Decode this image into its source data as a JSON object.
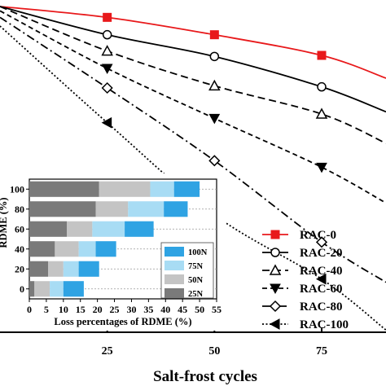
{
  "chart_data": [
    {
      "type": "line",
      "xlabel": "Salt-frost cycles",
      "ylabel": "",
      "xlim": [
        0,
        90
      ],
      "ylim": [
        70,
        100
      ],
      "x_ticks": [
        25,
        50,
        75
      ],
      "x_tick_labels": [
        "25",
        "50",
        "75"
      ],
      "legend_position": "bottom-right",
      "series": [
        {
          "name": "RAC-0",
          "color": "#e8191b",
          "marker": "square-filled",
          "dash": "solid",
          "x": [
            0,
            25,
            50,
            75,
            90
          ],
          "y": [
            100.0,
            99.0,
            97.4,
            95.5,
            93.4
          ]
        },
        {
          "name": "RAC-20",
          "color": "#000000",
          "marker": "circle-open",
          "dash": "solid",
          "x": [
            0,
            25,
            50,
            75,
            90
          ],
          "y": [
            100.0,
            97.4,
            95.4,
            92.6,
            90.3
          ]
        },
        {
          "name": "RAC-40",
          "color": "#000000",
          "marker": "triangle-open",
          "dash": "dashed",
          "x": [
            0,
            25,
            50,
            75,
            90
          ],
          "y": [
            100.0,
            95.9,
            92.7,
            90.1,
            87.4
          ]
        },
        {
          "name": "RAC-60",
          "color": "#000000",
          "marker": "triangle-down-filled",
          "dash": "short-dash",
          "x": [
            0,
            25,
            50,
            75,
            90
          ],
          "y": [
            99.6,
            94.3,
            89.7,
            85.2,
            81.9
          ]
        },
        {
          "name": "RAC-80",
          "color": "#000000",
          "marker": "diamond-open",
          "dash": "dash-dot",
          "x": [
            0,
            25,
            50,
            75,
            90
          ],
          "y": [
            99.0,
            92.5,
            85.8,
            78.3,
            74.6
          ]
        },
        {
          "name": "RAC-100",
          "color": "#000000",
          "marker": "triangle-left-filled",
          "dash": "dotted",
          "x": [
            0,
            25,
            50,
            75,
            90
          ],
          "y": [
            98.2,
            89.3,
            80.8,
            74.9,
            70.2
          ]
        }
      ]
    },
    {
      "type": "bar",
      "orientation": "horizontal",
      "stacked": true,
      "xlabel": "Loss percentages of RDME (%)",
      "ylabel": "",
      "xlim": [
        0,
        55
      ],
      "x_ticks": [
        0,
        5,
        10,
        15,
        20,
        25,
        30,
        35,
        40,
        45,
        50,
        55
      ],
      "categories": [
        "0",
        "20",
        "40",
        "60",
        "80",
        "100"
      ],
      "legend_position": "bottom-right",
      "series": [
        {
          "name": "25N",
          "color": "#7a7a7a",
          "values": [
            1.5,
            5.5,
            7.5,
            11,
            19.5,
            20.5
          ]
        },
        {
          "name": "50N",
          "color": "#c4c4c4",
          "values": [
            4.5,
            4.5,
            7.0,
            7.5,
            9.5,
            15.0
          ]
        },
        {
          "name": "75N",
          "color": "#a8dcf4",
          "values": [
            4.0,
            4.5,
            5.0,
            9.5,
            10.5,
            7.0
          ]
        },
        {
          "name": "100N",
          "color": "#2fa3e3",
          "values": [
            6.0,
            6.0,
            6.0,
            8.5,
            7.0,
            7.5
          ]
        }
      ],
      "partial_ylabel_visible": "RDME (%)"
    }
  ]
}
